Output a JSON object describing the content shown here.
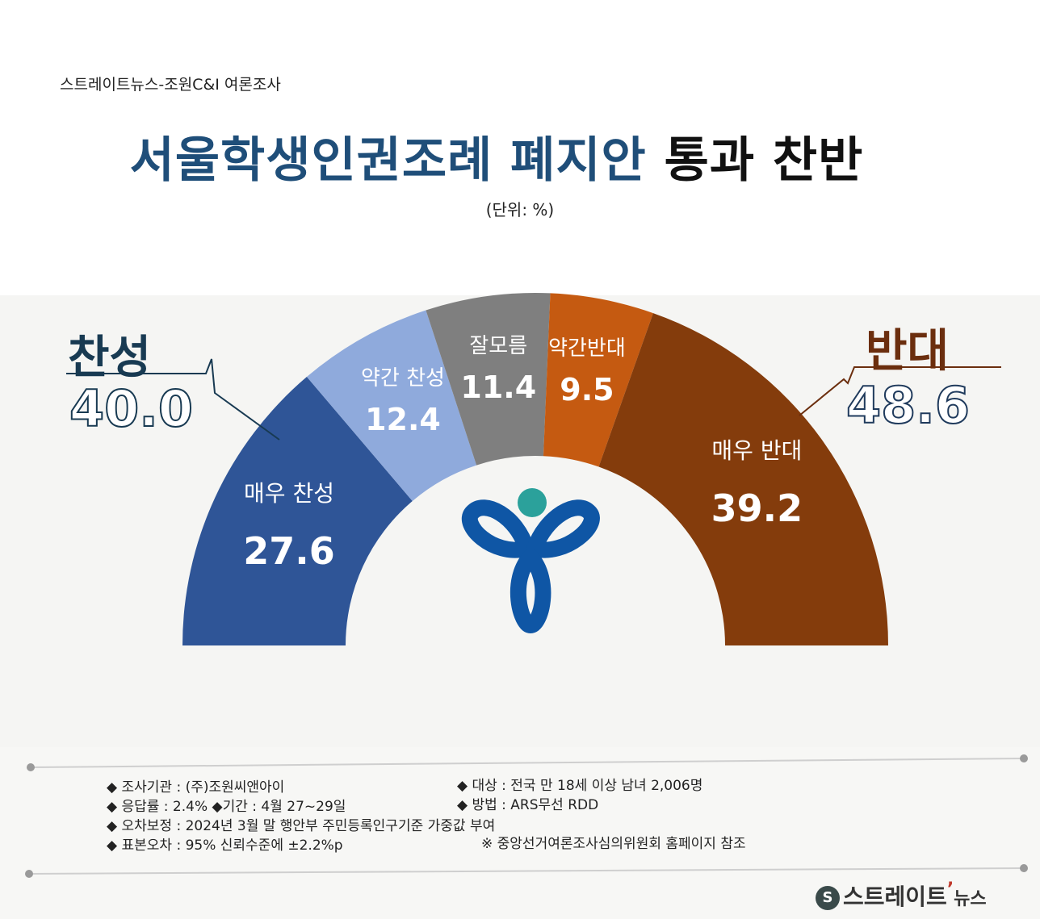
{
  "source": "스트레이트뉴스-조원C&I 여론조사",
  "title_part1": "서울학생인권조례 폐지안",
  "title_part2": "통과 찬반",
  "unit": "(단위: %)",
  "support": {
    "label": "찬성",
    "total": "40.0",
    "color": "#183a52"
  },
  "oppose": {
    "label": "반대",
    "total": "48.6",
    "color": "#6b2e0e"
  },
  "chart_data": {
    "type": "pie",
    "shape": "half-donut",
    "categories": [
      "매우 찬성",
      "약간 찬성",
      "잘모름",
      "약간반대",
      "매우 반대"
    ],
    "values": [
      27.6,
      12.4,
      11.4,
      9.5,
      39.2
    ],
    "value_labels": [
      "27.6",
      "12.4",
      "11.4",
      "9.5",
      "39.2"
    ],
    "colors": [
      "#2f5597",
      "#8faadc",
      "#7f7f7f",
      "#c55a11",
      "#843c0c"
    ],
    "groups": [
      {
        "name": "찬성",
        "total": 40.0
      },
      {
        "name": "반대",
        "total": 48.6
      }
    ]
  },
  "notes": {
    "left": [
      "◆ 조사기관 : (주)조원씨앤아이",
      "◆ 응답률 : 2.4% ◆기간 : 4월 27~29일",
      "◆ 오차보정 : 2024년 3월 말 행안부 주민등록인구기준 가중값 부여",
      "◆ 표본오차 : 95% 신뢰수준에 ±2.2%p"
    ],
    "right": [
      "◆ 대상 : 전국 만 18세 이상 남녀 2,006명",
      "◆ 방법 : ARS무선 RDD",
      "※ 중앙선거여론조사심의위원회 홈페이지 참조"
    ]
  },
  "brand": {
    "name": "스트레이트",
    "suffix": "뉴스",
    "icon": "straight-news-logo-icon"
  },
  "emblem": {
    "icon": "seoul-city-emblem-icon",
    "colors": [
      "#0f56a5",
      "#2ba19b"
    ]
  }
}
